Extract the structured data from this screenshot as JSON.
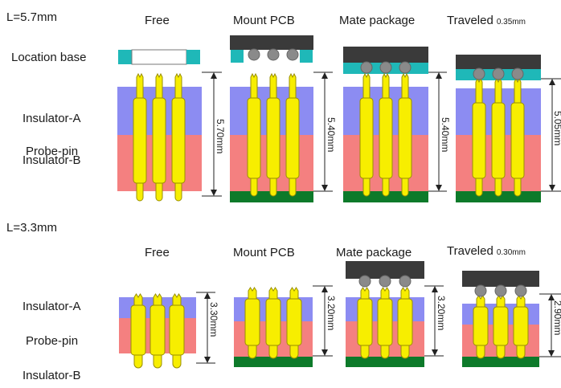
{
  "sections": [
    {
      "length_label": "L=5.7mm",
      "states": [
        {
          "title": "Free",
          "note": "",
          "dimension": "5.70mm"
        },
        {
          "title": "Mount PCB",
          "note": "",
          "dimension": "5.40mm"
        },
        {
          "title": "Mate package",
          "note": "",
          "dimension": "5.40mm"
        },
        {
          "title": "Traveled",
          "note": "0.35mm",
          "dimension": "5.05mm"
        }
      ],
      "row_labels": [
        "Location base",
        "Insulator-A",
        "Probe-pin",
        "Insulator-B"
      ]
    },
    {
      "length_label": "L=3.3mm",
      "states": [
        {
          "title": "Free",
          "note": "",
          "dimension": "3.30mm"
        },
        {
          "title": "Mount PCB",
          "note": "",
          "dimension": "3.20mm"
        },
        {
          "title": "Mate package",
          "note": "",
          "dimension": "3.20mm"
        },
        {
          "title": "Traveled",
          "note": "0.30mm",
          "dimension": "2.90mm"
        }
      ],
      "row_labels": [
        "Insulator-A",
        "Probe-pin",
        "Insulator-B"
      ]
    }
  ],
  "colors": {
    "insulator_a": "#8c8cf2",
    "insulator_b": "#f48080",
    "probe_pin": "#f7ee00",
    "probe_outline": "#9a8f00",
    "location_base": "#1fb8b8",
    "pcb": "#0d7a2a",
    "package": "#3a3a3a",
    "solder_ball": "#8a8a8a"
  }
}
